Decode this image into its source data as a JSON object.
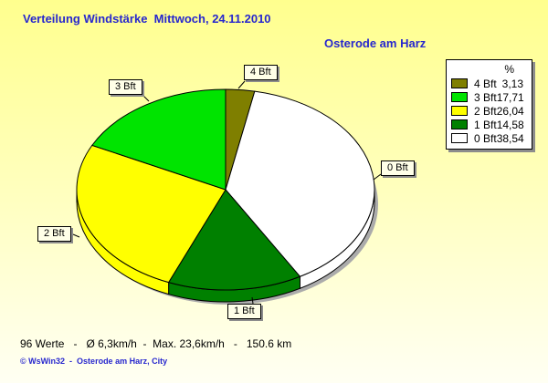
{
  "header": {
    "title": "Verteilung Windstärke  Mittwoch, 24.11.2010",
    "station": "Osterode am Harz"
  },
  "chart_data": {
    "type": "pie",
    "style": "3d-exploded-none",
    "title": "Verteilung Windstärke  Mittwoch, 24.11.2010",
    "subtitle": "Osterode am Harz",
    "legend": {
      "header": "%",
      "position": "top-right"
    },
    "slices": [
      {
        "label": "4 Bft",
        "value": 3.13,
        "display": "3,13",
        "color": "#7f7f00"
      },
      {
        "label": "3 Bft",
        "value": 17.71,
        "display": "17,71",
        "color": "#00e400"
      },
      {
        "label": "2 Bft",
        "value": 26.04,
        "display": "26,04",
        "color": "#ffff00"
      },
      {
        "label": "1 Bft",
        "value": 14.58,
        "display": "14,58",
        "color": "#008000"
      },
      {
        "label": "0 Bft",
        "value": 38.54,
        "display": "38,54",
        "color": "#ffffff"
      }
    ],
    "clockwise_order": [
      0,
      4,
      3,
      2,
      1
    ],
    "start_angle_deg_from_top": 0
  },
  "theme": {
    "background_top": "#ffff8e",
    "background_mid": "#ffffc0",
    "background_bottom": "#fffff3",
    "title_color": "#2727ce",
    "shadow_color": "#ababab",
    "callout_background": "#ffffe8",
    "outline_color": "#000000"
  },
  "footer": {
    "stats": "96 Werte   -   Ø 6,3km/h  -  Max. 23,6km/h   -   150.6 km",
    "copyright": "© WsWin32  -  Osterode am Harz, City"
  }
}
